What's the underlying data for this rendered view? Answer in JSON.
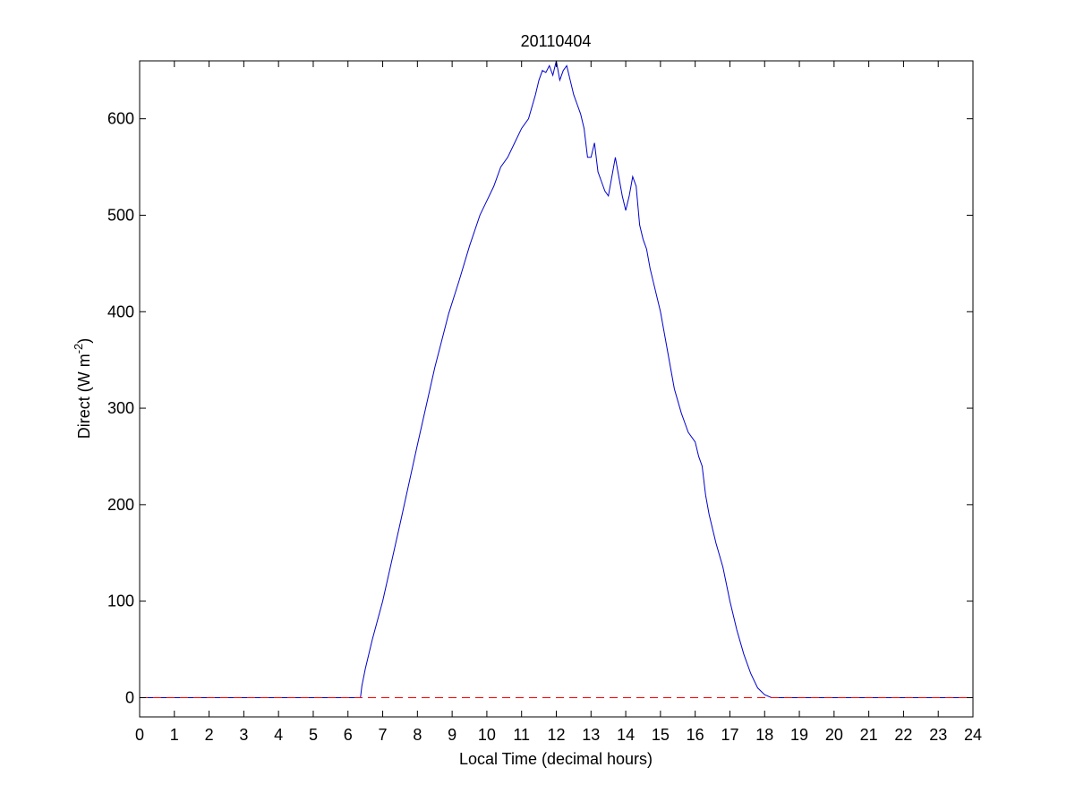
{
  "chart_data": {
    "type": "line",
    "title": "20110404",
    "xlabel": "Local Time (decimal hours)",
    "ylabel": {
      "base": "Direct (W m",
      "superscript": "-2",
      "close": ")"
    },
    "xlim": [
      0,
      24
    ],
    "ylim": [
      -20,
      660
    ],
    "x_ticks": [
      0,
      1,
      2,
      3,
      4,
      5,
      6,
      7,
      8,
      9,
      10,
      11,
      12,
      13,
      14,
      15,
      16,
      17,
      18,
      19,
      20,
      21,
      22,
      23,
      24
    ],
    "x_tick_labels": [
      "0",
      "1",
      "2",
      "3",
      "4",
      "5",
      "6",
      "7",
      "8",
      "9",
      "10",
      "11",
      "12",
      "13",
      "14",
      "15",
      "16",
      "17",
      "18",
      "19",
      "20",
      "21",
      "22",
      "23",
      "24"
    ],
    "y_ticks": [
      0,
      100,
      200,
      300,
      400,
      500,
      600
    ],
    "y_tick_labels": [
      "0",
      "100",
      "200",
      "300",
      "400",
      "500",
      "600"
    ],
    "grid": false,
    "series": [
      {
        "style": "solid",
        "color": "#0000cc",
        "x": [
          0,
          2,
          4,
          6,
          6.36,
          6.4,
          6.5,
          6.7,
          7.0,
          7.5,
          8.0,
          8.5,
          8.9,
          9.2,
          9.5,
          9.8,
          10.0,
          10.2,
          10.4,
          10.6,
          10.8,
          11.0,
          11.2,
          11.4,
          11.5,
          11.6,
          11.7,
          11.8,
          11.9,
          12.0,
          12.1,
          12.2,
          12.3,
          12.4,
          12.5,
          12.6,
          12.7,
          12.8,
          12.9,
          13.0,
          13.1,
          13.2,
          13.3,
          13.4,
          13.5,
          13.6,
          13.7,
          13.8,
          13.9,
          14.0,
          14.1,
          14.2,
          14.3,
          14.4,
          14.5,
          14.6,
          14.7,
          14.8,
          15.0,
          15.2,
          15.4,
          15.6,
          15.8,
          16.0,
          16.1,
          16.2,
          16.3,
          16.4,
          16.6,
          16.8,
          17.0,
          17.2,
          17.4,
          17.6,
          17.8,
          18.0,
          18.2,
          18.35,
          18.5,
          20,
          22,
          24
        ],
        "y": [
          0,
          0,
          0,
          0,
          0,
          12,
          30,
          60,
          100,
          180,
          262,
          342,
          398,
          432,
          468,
          500,
          515,
          530,
          550,
          560,
          575,
          590,
          600,
          625,
          640,
          650,
          648,
          655,
          645,
          660,
          640,
          650,
          655,
          640,
          625,
          615,
          605,
          590,
          560,
          560,
          575,
          545,
          535,
          525,
          520,
          540,
          560,
          540,
          520,
          505,
          520,
          540,
          530,
          490,
          475,
          465,
          445,
          430,
          400,
          360,
          320,
          295,
          275,
          265,
          250,
          240,
          210,
          190,
          160,
          135,
          100,
          70,
          45,
          25,
          10,
          3,
          0,
          0,
          0,
          0,
          0,
          0
        ]
      },
      {
        "style": "dashed",
        "color": "#ff0000",
        "x": [
          0,
          24
        ],
        "y": [
          0,
          0
        ]
      }
    ]
  }
}
